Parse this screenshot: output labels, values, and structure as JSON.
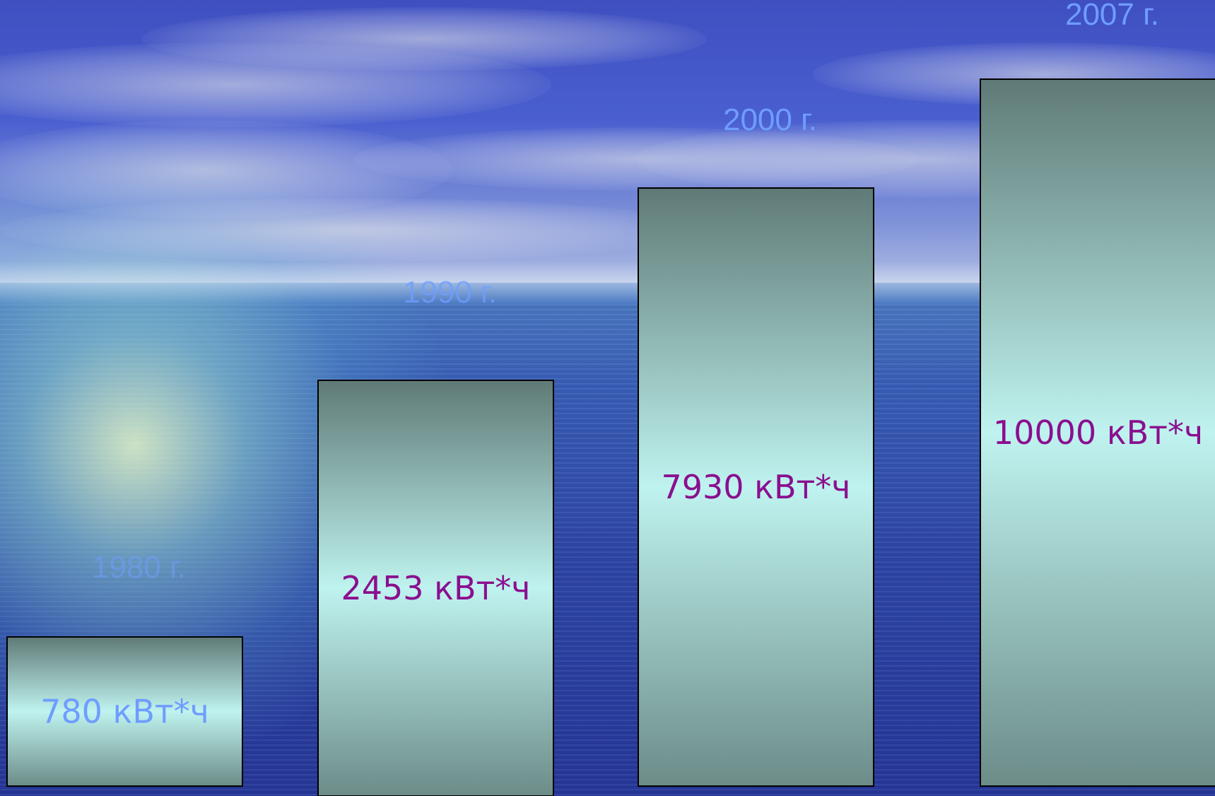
{
  "chart_data": {
    "type": "bar",
    "categories": [
      "1980 г.",
      "1990 г.",
      "2000 г.",
      "2007 г."
    ],
    "values": [
      780,
      2453,
      7930,
      10000
    ],
    "value_labels": [
      "780 кВт*ч",
      "2453 кВт*ч",
      "7930 кВт*ч",
      "10000 кВт*ч"
    ],
    "title": "",
    "xlabel": "",
    "ylabel": "",
    "grid": false,
    "legend": "none"
  },
  "colors": {
    "bar_edge": "#000000",
    "bar_top": "#5f7a76",
    "bar_mid": "#bff3ef",
    "value_label": "#8b0f8f",
    "first_value_label": "#6f9dff",
    "year_label": "#6f9dff"
  }
}
